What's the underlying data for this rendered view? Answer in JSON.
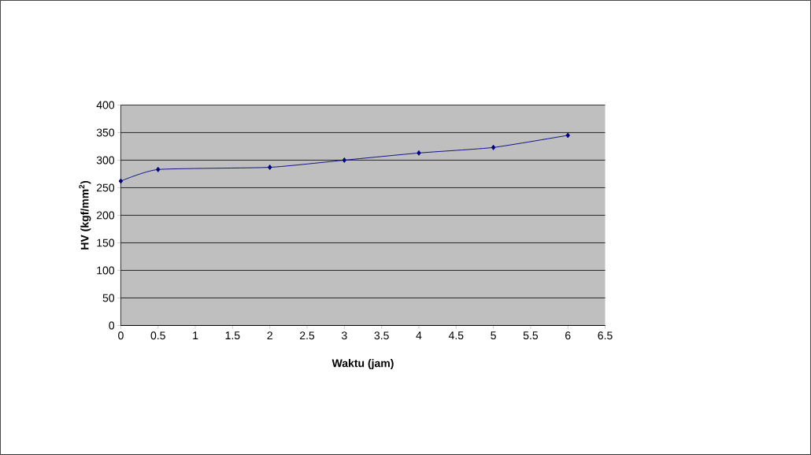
{
  "chart_data": {
    "type": "line",
    "xlabel": "Waktu (jam)",
    "ylabel": "HV (kgf/mm$^{2}$)",
    "x": [
      0,
      0.5,
      2,
      3,
      4,
      5,
      6
    ],
    "series": [
      {
        "color": "#000080",
        "values": [
          262,
          283,
          287,
          300,
          313,
          323,
          345
        ]
      }
    ],
    "xlim": [
      0,
      6.5
    ],
    "xticks": [
      0,
      0.5,
      1,
      1.5,
      2,
      2.5,
      3,
      3.5,
      4,
      4.5,
      5,
      5.5,
      6,
      6.5
    ],
    "ylim": [
      0,
      400
    ],
    "yticks": [
      0,
      50,
      100,
      150,
      200,
      250,
      300,
      350,
      400
    ],
    "grid": "y",
    "marker": "diamond",
    "line_style": "solid"
  }
}
